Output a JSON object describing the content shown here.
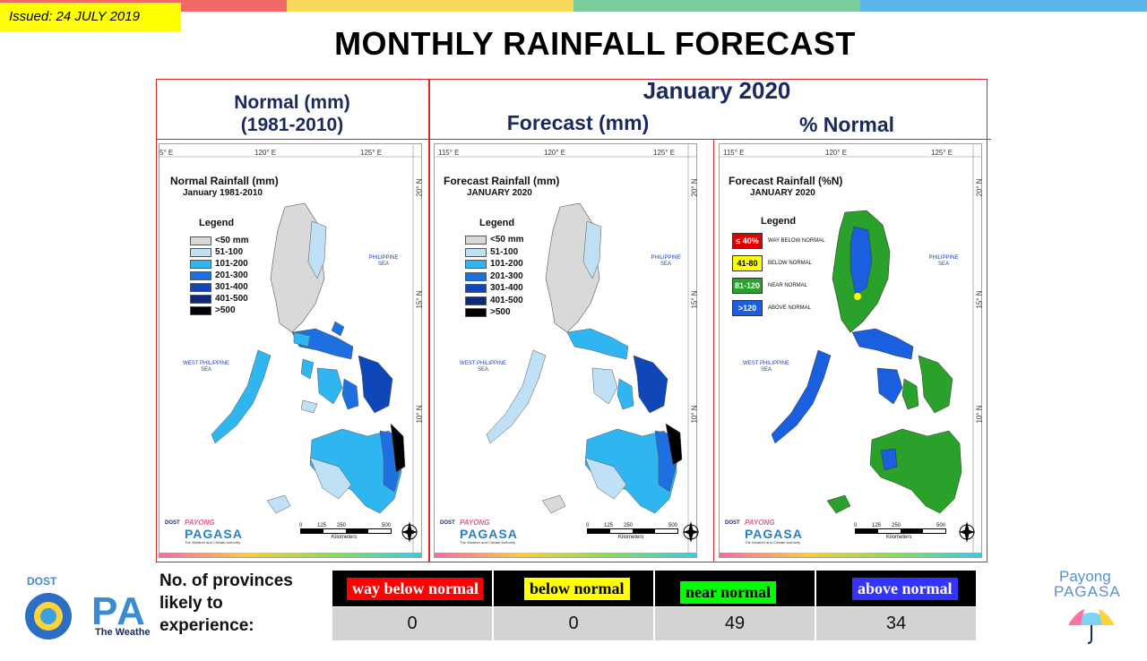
{
  "issued": "Issued: 24 JULY 2019",
  "title": "MONTHLY RAINFALL FORECAST",
  "headers": {
    "normal_line1": "Normal (mm)",
    "normal_line2": "(1981-2010)",
    "period": "January 2020",
    "forecast": "Forecast (mm)",
    "percent": "% Normal"
  },
  "ticks": {
    "lon_115": "115° E",
    "lon_120": "120° E",
    "lon_125": "125° E",
    "lon_115_cut": "5° E",
    "lat_20": "20° N",
    "lat_15": "15° N",
    "lat_10": "10° N"
  },
  "sea_labels": {
    "philippine": "PHILIPPINE SEA",
    "west_philippine": "WEST PHILIPPINE SEA"
  },
  "scale": {
    "labels": [
      "0",
      "125",
      "250",
      "500"
    ],
    "unit": "Kilometers"
  },
  "maps": [
    {
      "title": "Normal Rainfall (mm)",
      "subtitle": "January 1981-2010"
    },
    {
      "title": "Forecast Rainfall (mm)",
      "subtitle": "JANUARY 2020"
    },
    {
      "title": "Forecast Rainfall (%N)",
      "subtitle": "JANUARY 2020"
    }
  ],
  "legend": {
    "title": "Legend",
    "items": [
      {
        "label": "<50 mm",
        "color": "#d9d9d9"
      },
      {
        "label": "51-100",
        "color": "#bfe0f5"
      },
      {
        "label": "101-200",
        "color": "#2fb5f0"
      },
      {
        "label": "201-300",
        "color": "#1e6fe0"
      },
      {
        "label": "301-400",
        "color": "#0f47b8"
      },
      {
        "label": "401-500",
        "color": "#0b2a78"
      },
      {
        "label": ">500",
        "color": "#000000"
      }
    ],
    "alt_labels": [
      "<50 mm",
      "51-100",
      "101-200",
      "201-300",
      "301-400",
      "401-500",
      ">500"
    ]
  },
  "pct_legend": {
    "title": "Legend",
    "items": [
      {
        "box": "≤ 40%",
        "label": "WAY BELOW NORMAL",
        "color": "#e00000",
        "text": "#ffffff"
      },
      {
        "box": "41-80",
        "label": "BELOW NORMAL",
        "color": "#ffff00",
        "text": "#000000"
      },
      {
        "box": "81-120",
        "label": "NEAR NORMAL",
        "color": "#2aa12a",
        "text": "#ffffff"
      },
      {
        "box": ">120",
        "label": "ABOVE NORMAL",
        "color": "#1a5fe0",
        "text": "#ffffff"
      }
    ]
  },
  "map_logo": {
    "dost": "DOST",
    "payong": "PAYONG",
    "pagasa": "PAGASA",
    "tagline": "The Weather and Climate Authority"
  },
  "summary": {
    "label": "No. of provinces likely to experience:",
    "label_lines": [
      "No. of provinces",
      "likely to",
      "experience:"
    ],
    "categories": [
      {
        "label": "way below normal",
        "bg": "#ff0000",
        "fg": "#ffffff",
        "count": "0"
      },
      {
        "label": "below normal",
        "bg": "#ffff00",
        "fg": "#000000",
        "count": "0"
      },
      {
        "label": "near normal",
        "bg": "#00ff00",
        "fg": "#000000",
        "count": "49"
      },
      {
        "label": "above normal",
        "bg": "#3333ff",
        "fg": "#ffffff",
        "count": "34"
      }
    ]
  },
  "footer_logo": {
    "dost": "DOST",
    "pa": "PA",
    "tagline": "The Weathe"
  },
  "payong_logo": {
    "line1": "Payong",
    "line2": "PAGASA"
  },
  "colors": {
    "topbar": [
      "#f06a6a",
      "#f7d85a",
      "#7ccb9a",
      "#5ab6e8"
    ],
    "frame": "#d62828",
    "header_text": "#1a2a5e"
  }
}
